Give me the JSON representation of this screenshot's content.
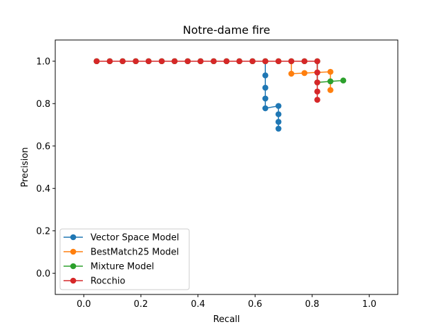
{
  "chart_data": {
    "type": "line",
    "title": "Notre-dame fire",
    "xlabel": "Recall",
    "ylabel": "Precision",
    "xlim": [
      -0.1,
      1.1
    ],
    "ylim": [
      -0.1,
      1.1
    ],
    "xticks": [
      "0.0",
      "0.2",
      "0.4",
      "0.6",
      "0.8",
      "1.0"
    ],
    "yticks": [
      "0.0",
      "0.2",
      "0.4",
      "0.6",
      "0.8",
      "1.0"
    ],
    "grid": false,
    "legend_position": "lower-left",
    "colors": [
      "#1f77b4",
      "#ff7f0e",
      "#2ca02c",
      "#d62728"
    ],
    "series": [
      {
        "name": "Vector Space Model",
        "x": [
          0.045,
          0.091,
          0.136,
          0.182,
          0.227,
          0.273,
          0.318,
          0.364,
          0.409,
          0.455,
          0.5,
          0.545,
          0.591,
          0.636,
          0.636,
          0.636,
          0.636,
          0.636,
          0.682,
          0.682,
          0.682,
          0.682
        ],
        "y": [
          1.0,
          1.0,
          1.0,
          1.0,
          1.0,
          1.0,
          1.0,
          1.0,
          1.0,
          1.0,
          1.0,
          1.0,
          1.0,
          1.0,
          0.933,
          0.875,
          0.824,
          0.778,
          0.789,
          0.75,
          0.714,
          0.682
        ]
      },
      {
        "name": "BestMatch25 Model",
        "x": [
          0.045,
          0.091,
          0.136,
          0.182,
          0.227,
          0.273,
          0.318,
          0.364,
          0.409,
          0.455,
          0.5,
          0.545,
          0.591,
          0.636,
          0.682,
          0.727,
          0.727,
          0.773,
          0.818,
          0.864,
          0.864
        ],
        "y": [
          1.0,
          1.0,
          1.0,
          1.0,
          1.0,
          1.0,
          1.0,
          1.0,
          1.0,
          1.0,
          1.0,
          1.0,
          1.0,
          1.0,
          1.0,
          1.0,
          0.941,
          0.944,
          0.947,
          0.95,
          0.864
        ]
      },
      {
        "name": "Mixture Model",
        "x": [
          0.045,
          0.091,
          0.136,
          0.182,
          0.227,
          0.273,
          0.318,
          0.364,
          0.409,
          0.455,
          0.5,
          0.545,
          0.591,
          0.636,
          0.682,
          0.727,
          0.773,
          0.818,
          0.818,
          0.864,
          0.909
        ],
        "y": [
          1.0,
          1.0,
          1.0,
          1.0,
          1.0,
          1.0,
          1.0,
          1.0,
          1.0,
          1.0,
          1.0,
          1.0,
          1.0,
          1.0,
          1.0,
          1.0,
          1.0,
          1.0,
          0.9,
          0.905,
          0.909
        ]
      },
      {
        "name": "Rocchio",
        "x": [
          0.045,
          0.091,
          0.136,
          0.182,
          0.227,
          0.273,
          0.318,
          0.364,
          0.409,
          0.455,
          0.5,
          0.545,
          0.591,
          0.636,
          0.682,
          0.727,
          0.773,
          0.818,
          0.818,
          0.818,
          0.818,
          0.818
        ],
        "y": [
          1.0,
          1.0,
          1.0,
          1.0,
          1.0,
          1.0,
          1.0,
          1.0,
          1.0,
          1.0,
          1.0,
          1.0,
          1.0,
          1.0,
          1.0,
          1.0,
          1.0,
          1.0,
          0.947,
          0.9,
          0.857,
          0.818
        ]
      }
    ]
  }
}
